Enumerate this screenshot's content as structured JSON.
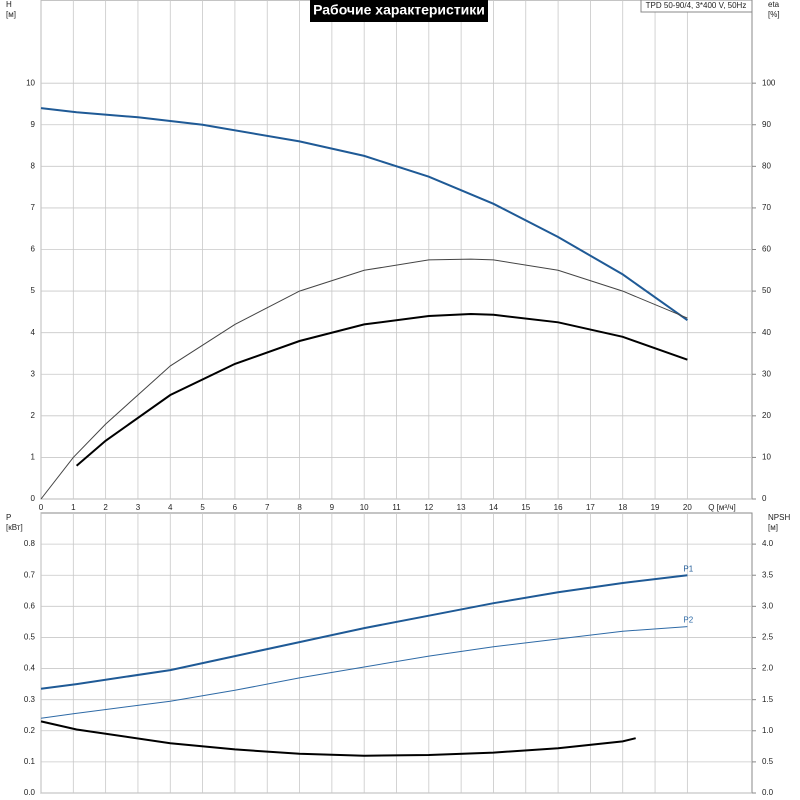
{
  "chart_data": [
    {
      "type": "line",
      "title": "Рабочие характеристики",
      "info": "TPD 50-90/4, 3*400 V, 50Hz",
      "xlabel": "Q [м³/ч]",
      "ylabel": [
        "H",
        "[м]"
      ],
      "y2label": [
        "eta",
        "[%]"
      ],
      "xlim": [
        0,
        22
      ],
      "xticks": [
        0,
        1,
        2,
        3,
        4,
        5,
        6,
        7,
        8,
        9,
        10,
        11,
        12,
        13,
        14,
        15,
        16,
        17,
        18,
        19,
        20
      ],
      "ylim": [
        0,
        12
      ],
      "yticks": [
        0,
        1,
        2,
        3,
        4,
        5,
        6,
        7,
        8,
        9,
        10
      ],
      "y2lim": [
        0,
        120
      ],
      "y2ticks": [
        0,
        10,
        20,
        30,
        40,
        50,
        60,
        70,
        80,
        90,
        100
      ],
      "grid": true,
      "series": [
        {
          "color": "#1f5a96",
          "linewidth": 2,
          "x": [
            0,
            1.1,
            3,
            5,
            8,
            10,
            12,
            14,
            16,
            18,
            20
          ],
          "values": [
            9.4,
            9.3,
            9.18,
            9.0,
            8.6,
            8.25,
            7.75,
            7.1,
            6.3,
            5.4,
            4.3
          ]
        },
        {
          "color": "#444444",
          "linewidth": 1,
          "axis": "y2",
          "x": [
            0,
            1,
            2,
            4,
            6,
            8,
            10,
            12,
            13.3,
            14,
            16,
            18,
            20
          ],
          "values": [
            0,
            10,
            18,
            32,
            42,
            50,
            55,
            57.5,
            57.7,
            57.5,
            55,
            50,
            43.5
          ]
        },
        {
          "color": "#000000",
          "linewidth": 2,
          "axis": "y2",
          "x": [
            1.1,
            2,
            4,
            6,
            8,
            10,
            12,
            13.3,
            14,
            16,
            18,
            20
          ],
          "values": [
            8,
            14,
            25,
            32.5,
            38,
            42,
            44,
            44.5,
            44.3,
            42.5,
            39,
            33.5
          ]
        }
      ]
    },
    {
      "type": "line",
      "ylabel": [
        "P",
        "[кВт]"
      ],
      "y2label": [
        "NPSH",
        "[м]"
      ],
      "xlim": [
        0,
        22
      ],
      "xticks": [
        0,
        1,
        2,
        3,
        4,
        5,
        6,
        7,
        8,
        9,
        10,
        11,
        12,
        13,
        14,
        15,
        16,
        17,
        18,
        19,
        20
      ],
      "ylim": [
        0,
        0.9
      ],
      "yticks": [
        {
          "value": 0,
          "label": "0.0"
        },
        0.1,
        0.2,
        0.3,
        0.4,
        0.5,
        0.6,
        0.7,
        0.8
      ],
      "y2lim": [
        0,
        4.5
      ],
      "y2ticks": [
        {
          "value": 0,
          "label": "0.0"
        },
        0.5,
        {
          "value": 1,
          "label": "1.0"
        },
        1.5,
        {
          "value": 2,
          "label": "2.0"
        },
        2.5,
        {
          "value": 3,
          "label": "3.0"
        },
        3.5,
        {
          "value": 4,
          "label": "4.0"
        }
      ],
      "grid": true,
      "series": [
        {
          "name": "P1",
          "color": "#1f5a96",
          "linewidth": 2,
          "x": [
            0,
            1.1,
            4,
            6,
            8,
            10,
            12,
            14,
            16,
            18,
            20
          ],
          "values": [
            0.335,
            0.35,
            0.395,
            0.44,
            0.485,
            0.53,
            0.57,
            0.61,
            0.645,
            0.675,
            0.7
          ]
        },
        {
          "name": "P2",
          "color": "#2e6aa6",
          "linewidth": 1,
          "x": [
            0,
            1,
            4,
            6,
            8,
            10,
            12,
            14,
            16,
            18,
            20
          ],
          "values": [
            0.24,
            0.255,
            0.295,
            0.33,
            0.37,
            0.405,
            0.44,
            0.47,
            0.495,
            0.52,
            0.535
          ]
        },
        {
          "color": "#000000",
          "linewidth": 2,
          "axis": "y2",
          "x": [
            0,
            1.1,
            4,
            6,
            8,
            10,
            12,
            14,
            16,
            18,
            18.4
          ],
          "values": [
            1.15,
            1.02,
            0.8,
            0.7,
            0.63,
            0.6,
            0.61,
            0.65,
            0.72,
            0.83,
            0.88
          ]
        }
      ]
    }
  ]
}
